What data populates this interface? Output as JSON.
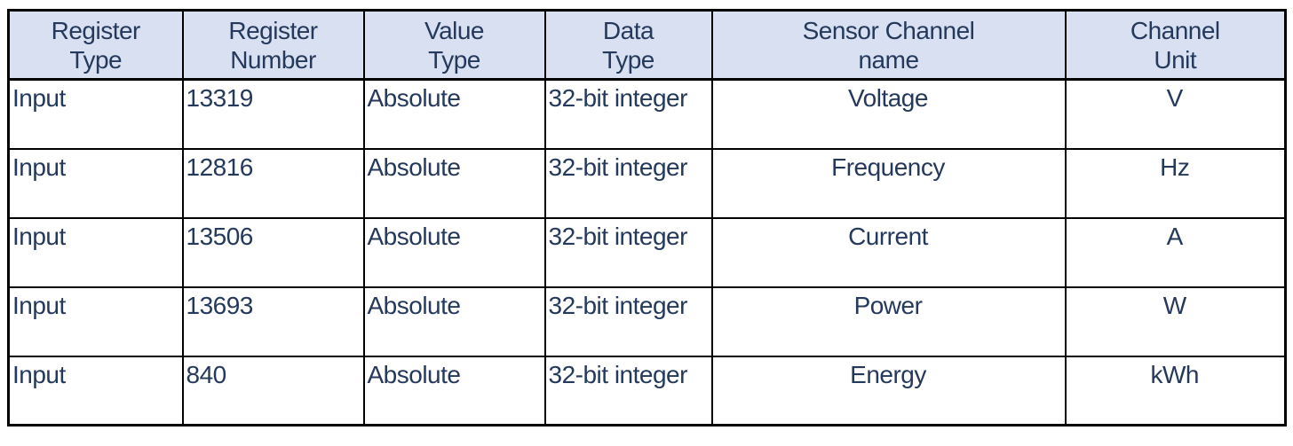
{
  "colors": {
    "header_bg": "#d8e0f2",
    "text": "#24395b",
    "border": "#000000",
    "page_bg": "#ffffff"
  },
  "table": {
    "headers": [
      {
        "id": "register-type",
        "label": "Register\nType"
      },
      {
        "id": "register-number",
        "label": "Register\nNumber"
      },
      {
        "id": "value-type",
        "label": "Value\nType"
      },
      {
        "id": "data-type",
        "label": "Data\nType"
      },
      {
        "id": "sensor-channel-name",
        "label": "Sensor Channel\nname"
      },
      {
        "id": "channel-unit",
        "label": "Channel\nUnit"
      }
    ],
    "rows": [
      {
        "cells": [
          "Input",
          "13319",
          "Absolute",
          "32-bit integer",
          "Voltage",
          "V"
        ]
      },
      {
        "cells": [
          "Input",
          "12816",
          "Absolute",
          "32-bit integer",
          "Frequency",
          "Hz"
        ]
      },
      {
        "cells": [
          "Input",
          "13506",
          "Absolute",
          "32-bit integer",
          "Current",
          "A"
        ]
      },
      {
        "cells": [
          "Input",
          "13693",
          "Absolute",
          "32-bit integer",
          "Power",
          "W"
        ]
      },
      {
        "cells": [
          "Input",
          "840",
          "Absolute",
          "32-bit integer",
          "Energy",
          "kWh"
        ]
      }
    ]
  }
}
